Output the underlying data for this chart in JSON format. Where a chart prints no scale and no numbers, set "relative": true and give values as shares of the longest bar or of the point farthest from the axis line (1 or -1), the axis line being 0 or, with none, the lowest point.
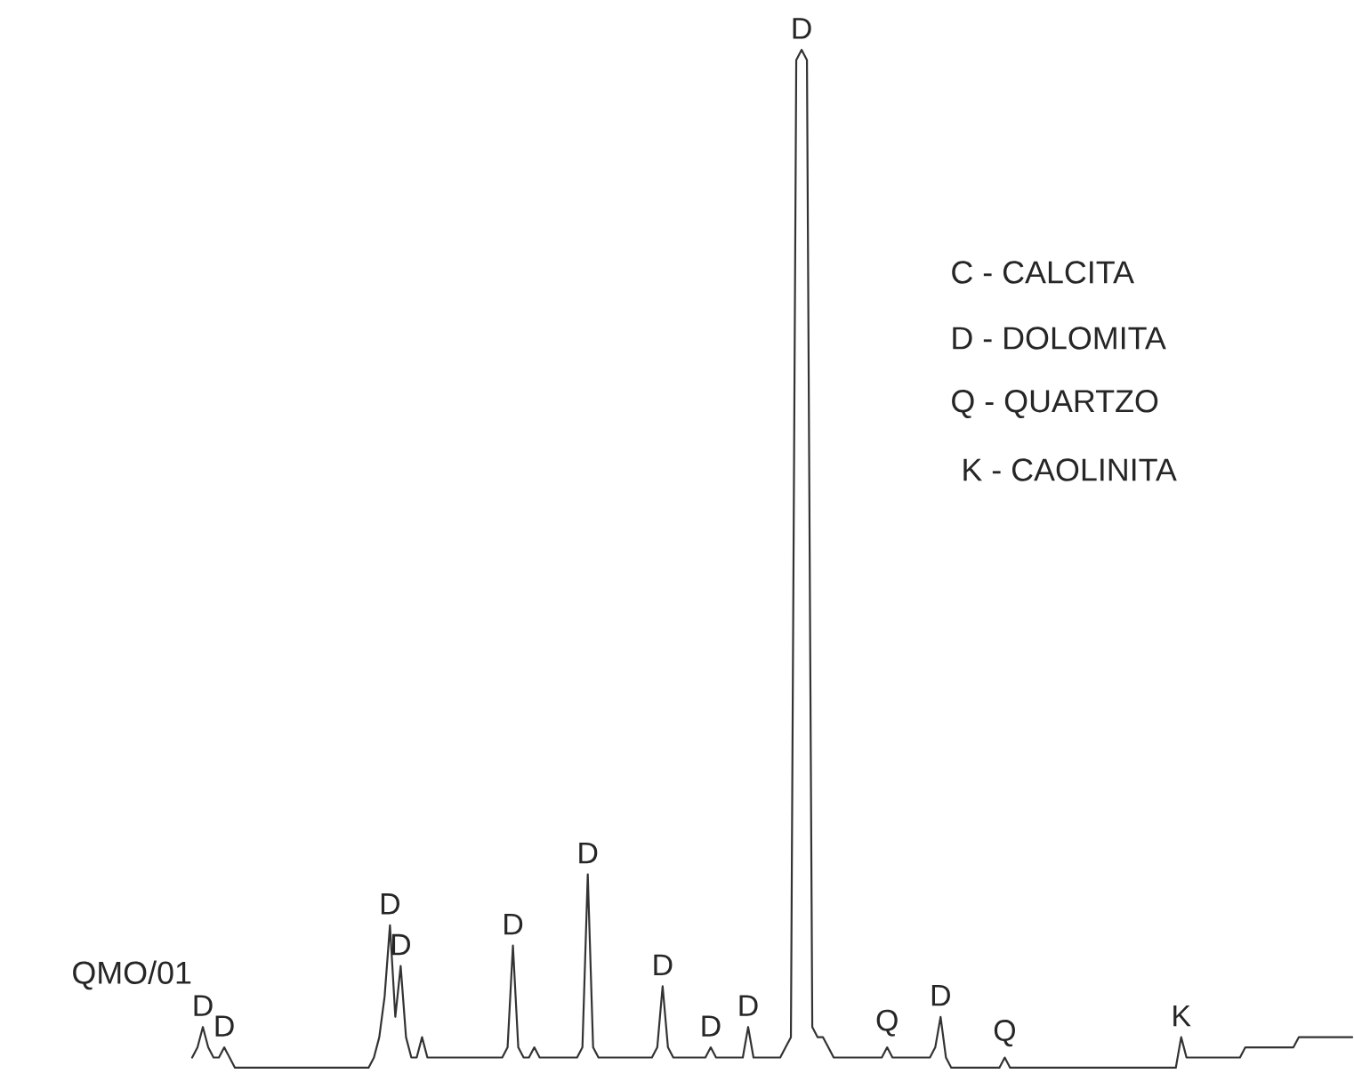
{
  "chart_data": {
    "type": "line",
    "relative": true,
    "color": "#333333",
    "categories": [
      null,
      null,
      null,
      null,
      null,
      null,
      null,
      null,
      null,
      null,
      null,
      null,
      null,
      null,
      null,
      null,
      null,
      null,
      null,
      null,
      null,
      null,
      null,
      null,
      null,
      null,
      null,
      null,
      null,
      null,
      null,
      null,
      null,
      null,
      null,
      null,
      null,
      null,
      null,
      null,
      null,
      null,
      null,
      null,
      null,
      null,
      null,
      null,
      null,
      null,
      null,
      null,
      null,
      null,
      null,
      null,
      null,
      null,
      null,
      null,
      null,
      null,
      null,
      null,
      null,
      null,
      null,
      null,
      null,
      null,
      null,
      null,
      null,
      null,
      null,
      null,
      null,
      null,
      null,
      null,
      null,
      null,
      null,
      null,
      null,
      null,
      null,
      null,
      null,
      null,
      null,
      null,
      null,
      null,
      null,
      null,
      null,
      null,
      null,
      null,
      null,
      null,
      null,
      null,
      null,
      null,
      null,
      null,
      null,
      null,
      null,
      null,
      null,
      null,
      null,
      null,
      null,
      null,
      null,
      null,
      null,
      null,
      null,
      null,
      null,
      null,
      null,
      null,
      null,
      null,
      null,
      null,
      null,
      null,
      null,
      null,
      null,
      null,
      null,
      null,
      null,
      null,
      null,
      null,
      null,
      null,
      null,
      null,
      null,
      null,
      null,
      null,
      null,
      null,
      null,
      null,
      null,
      null,
      null,
      null,
      null,
      null,
      null,
      null,
      null,
      null,
      null,
      null,
      null,
      null,
      null,
      null,
      null,
      null,
      null,
      null,
      null,
      null,
      null,
      null,
      null,
      null,
      null,
      null,
      null,
      null,
      null,
      null,
      null,
      null,
      null,
      null,
      null,
      null,
      null,
      null,
      null,
      null,
      null,
      null,
      null,
      null,
      null,
      null,
      null,
      null,
      null,
      null,
      null,
      null,
      null,
      null,
      null,
      null,
      null,
      null,
      null,
      null
    ],
    "values": [
      0.01,
      0.02,
      0.04,
      0.02,
      0.01,
      0.01,
      0.02,
      0.01,
      0,
      0,
      0,
      0,
      0,
      0,
      0,
      0,
      0,
      0,
      0,
      0,
      0,
      0,
      0,
      0,
      0,
      0,
      0,
      0,
      0,
      0,
      0,
      0,
      0,
      0,
      0.01,
      0.03,
      0.07,
      0.14,
      0.05,
      0.1,
      0.03,
      0.01,
      0.01,
      0.03,
      0.01,
      0.01,
      0.01,
      0.01,
      0.01,
      0.01,
      0.01,
      0.01,
      0.01,
      0.01,
      0.01,
      0.01,
      0.01,
      0.01,
      0.01,
      0.02,
      0.12,
      0.02,
      0.01,
      0.01,
      0.02,
      0.01,
      0.01,
      0.01,
      0.01,
      0.01,
      0.01,
      0.01,
      0.01,
      0.02,
      0.19,
      0.02,
      0.01,
      0.01,
      0.01,
      0.01,
      0.01,
      0.01,
      0.01,
      0.01,
      0.01,
      0.01,
      0.01,
      0.02,
      0.08,
      0.02,
      0.01,
      0.01,
      0.01,
      0.01,
      0.01,
      0.01,
      0.01,
      0.02,
      0.01,
      0.01,
      0.01,
      0.01,
      0.01,
      0.01,
      0.04,
      0.01,
      0.01,
      0.01,
      0.01,
      0.01,
      0.01,
      0.02,
      0.03,
      0.99,
      1.0,
      0.99,
      0.04,
      0.03,
      0.03,
      0.02,
      0.01,
      0.01,
      0.01,
      0.01,
      0.01,
      0.01,
      0.01,
      0.01,
      0.01,
      0.01,
      0.02,
      0.01,
      0.01,
      0.01,
      0.01,
      0.01,
      0.01,
      0.01,
      0.01,
      0.02,
      0.05,
      0.01,
      0,
      0,
      0,
      0,
      0,
      0,
      0,
      0,
      0,
      0,
      0.01,
      0,
      0,
      0,
      0,
      0,
      0,
      0,
      0,
      0,
      0,
      0,
      0,
      0,
      0,
      0,
      0,
      0,
      0,
      0,
      0,
      0,
      0,
      0,
      0,
      0,
      0,
      0,
      0,
      0,
      0,
      0,
      0,
      0.03,
      0.01,
      0.01,
      0.01,
      0.01,
      0.01,
      0.01,
      0.01,
      0.01,
      0.01,
      0.01,
      0.01,
      0.02,
      0.02,
      0.02,
      0.02,
      0.02,
      0.02,
      0.02,
      0.02,
      0.02,
      0.02,
      0.03,
      0.03,
      0.03,
      0.03,
      0.03,
      0.03,
      0.03,
      0.03,
      0.03,
      0.03,
      0.03
    ],
    "annotations": [
      "C - CALCITA",
      "D - DOLOMITA",
      "Q - QUARTZO",
      "K - CAOLINITA",
      "QMO/01",
      {
        "text": "D",
        "y": 0.04
      },
      {
        "text": "D",
        "y": 0.02
      },
      {
        "text": "D",
        "y": 0.14
      },
      {
        "text": "D",
        "y": 0.1
      },
      {
        "text": "D",
        "y": 0.12
      },
      {
        "text": "D",
        "y": 0.19
      },
      {
        "text": "D",
        "y": 0.08
      },
      {
        "text": "D",
        "y": 0.02
      },
      {
        "text": "D",
        "y": 0.04
      },
      {
        "text": "D",
        "y": 1.0
      },
      {
        "text": "Q",
        "y": 0.02
      },
      {
        "text": "D",
        "y": 0.05
      },
      {
        "text": "Q",
        "y": 0.01
      },
      {
        "text": "K",
        "y": 0.03
      }
    ]
  }
}
